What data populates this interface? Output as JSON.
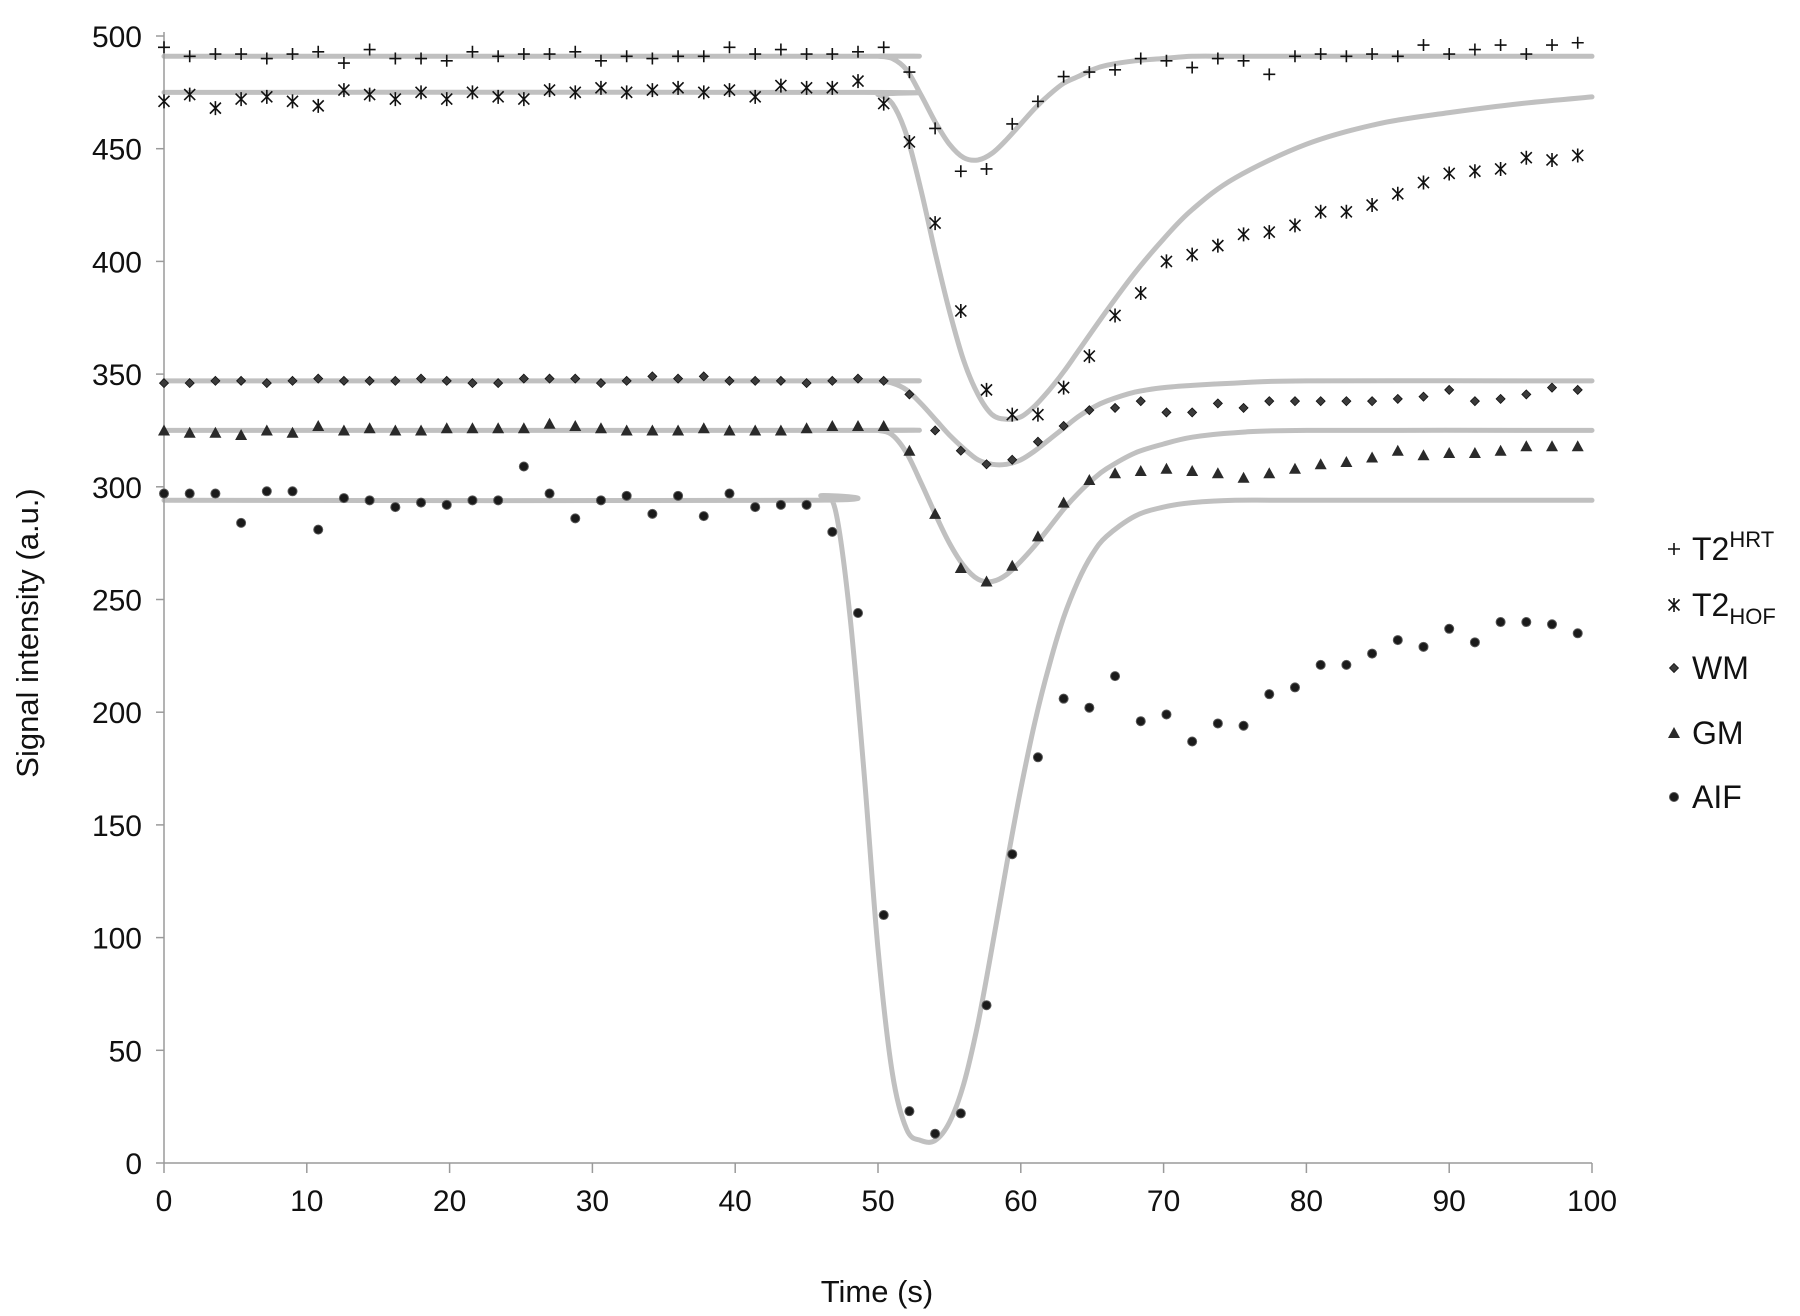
{
  "chart_data": {
    "type": "scatter",
    "title": "",
    "xlabel": "Time (s)",
    "ylabel": "Signal intensity (a.u.)",
    "xlim": [
      0,
      100
    ],
    "ylim": [
      0,
      500
    ],
    "x_ticks": [
      "0",
      "10",
      "20",
      "30",
      "40",
      "50",
      "60",
      "70",
      "80",
      "90",
      "100"
    ],
    "y_ticks": [
      "0",
      "50",
      "100",
      "150",
      "200",
      "250",
      "300",
      "350",
      "400",
      "450",
      "500"
    ],
    "grid": false,
    "legend_position": "right",
    "colors": {
      "markers": "#111111",
      "fit": "#c0c0c0",
      "axis": "#9a9a9a"
    },
    "series": [
      {
        "name": "T2",
        "name_sup": "HRT",
        "name_sub": "",
        "marker": "plus",
        "x": [
          0,
          1.8,
          3.6,
          5.4,
          7.2,
          9,
          10.8,
          12.6,
          14.4,
          16.2,
          18,
          19.8,
          21.6,
          23.4,
          25.2,
          27,
          28.8,
          30.6,
          32.4,
          34.2,
          36,
          37.8,
          39.6,
          41.4,
          43.2,
          45,
          46.8,
          48.6,
          50.4,
          52.2,
          54,
          55.8,
          57.6,
          59.4,
          61.2,
          63,
          64.8,
          66.6,
          68.4,
          70.2,
          72,
          73.8,
          75.6,
          77.4,
          79.2,
          81,
          82.8,
          84.6,
          86.4,
          88.2,
          90,
          91.8,
          93.6,
          95.4,
          97.2,
          99
        ],
        "y": [
          495,
          491,
          492,
          492,
          490,
          492,
          493,
          488,
          494,
          490,
          490,
          489,
          493,
          491,
          492,
          492,
          493,
          489,
          491,
          490,
          491,
          491,
          495,
          492,
          494,
          492,
          492,
          493,
          495,
          484,
          459,
          440,
          441,
          461,
          471,
          482,
          484,
          485,
          490,
          489,
          486,
          490,
          489,
          483,
          491,
          492,
          491,
          492,
          491,
          496,
          492,
          494,
          496,
          492,
          496,
          497
        ]
      },
      {
        "name": "T2",
        "name_sup": "",
        "name_sub": "HOF",
        "marker": "asterisk",
        "x": [
          0,
          1.8,
          3.6,
          5.4,
          7.2,
          9,
          10.8,
          12.6,
          14.4,
          16.2,
          18,
          19.8,
          21.6,
          23.4,
          25.2,
          27,
          28.8,
          30.6,
          32.4,
          34.2,
          36,
          37.8,
          39.6,
          41.4,
          43.2,
          45,
          46.8,
          48.6,
          50.4,
          52.2,
          54,
          55.8,
          57.6,
          59.4,
          61.2,
          63,
          64.8,
          66.6,
          68.4,
          70.2,
          72,
          73.8,
          75.6,
          77.4,
          79.2,
          81,
          82.8,
          84.6,
          86.4,
          88.2,
          90,
          91.8,
          93.6,
          95.4,
          97.2,
          99
        ],
        "y": [
          471,
          474,
          468,
          472,
          473,
          471,
          469,
          476,
          474,
          472,
          475,
          472,
          475,
          473,
          472,
          476,
          475,
          477,
          475,
          476,
          477,
          475,
          476,
          473,
          478,
          477,
          477,
          480,
          470,
          453,
          417,
          378,
          343,
          332,
          332,
          344,
          358,
          376,
          386,
          400,
          403,
          407,
          412,
          413,
          416,
          422,
          422,
          425,
          430,
          435,
          439,
          440,
          441,
          446,
          445,
          447
        ]
      },
      {
        "name": "WM",
        "name_sup": "",
        "name_sub": "",
        "marker": "diamond",
        "x": [
          0,
          1.8,
          3.6,
          5.4,
          7.2,
          9,
          10.8,
          12.6,
          14.4,
          16.2,
          18,
          19.8,
          21.6,
          23.4,
          25.2,
          27,
          28.8,
          30.6,
          32.4,
          34.2,
          36,
          37.8,
          39.6,
          41.4,
          43.2,
          45,
          46.8,
          48.6,
          50.4,
          52.2,
          54,
          55.8,
          57.6,
          59.4,
          61.2,
          63,
          64.8,
          66.6,
          68.4,
          70.2,
          72,
          73.8,
          75.6,
          77.4,
          79.2,
          81,
          82.8,
          84.6,
          86.4,
          88.2,
          90,
          91.8,
          93.6,
          95.4,
          97.2,
          99
        ],
        "y": [
          346,
          346,
          347,
          347,
          346,
          347,
          348,
          347,
          347,
          347,
          348,
          347,
          346,
          346,
          348,
          348,
          348,
          346,
          347,
          349,
          348,
          349,
          347,
          347,
          347,
          346,
          347,
          348,
          347,
          341,
          325,
          316,
          310,
          312,
          320,
          327,
          334,
          335,
          338,
          333,
          333,
          337,
          335,
          338,
          338,
          338,
          338,
          338,
          339,
          340,
          343,
          338,
          339,
          341,
          344,
          343
        ]
      },
      {
        "name": "GM",
        "name_sup": "",
        "name_sub": "",
        "marker": "triangle",
        "x": [
          0,
          1.8,
          3.6,
          5.4,
          7.2,
          9,
          10.8,
          12.6,
          14.4,
          16.2,
          18,
          19.8,
          21.6,
          23.4,
          25.2,
          27,
          28.8,
          30.6,
          32.4,
          34.2,
          36,
          37.8,
          39.6,
          41.4,
          43.2,
          45,
          46.8,
          48.6,
          50.4,
          52.2,
          54,
          55.8,
          57.6,
          59.4,
          61.2,
          63,
          64.8,
          66.6,
          68.4,
          70.2,
          72,
          73.8,
          75.6,
          77.4,
          79.2,
          81,
          82.8,
          84.6,
          86.4,
          88.2,
          90,
          91.8,
          93.6,
          95.4,
          97.2,
          99
        ],
        "y": [
          325,
          324,
          324,
          323,
          325,
          324,
          327,
          325,
          326,
          325,
          325,
          326,
          326,
          326,
          326,
          328,
          327,
          326,
          325,
          325,
          325,
          326,
          325,
          325,
          325,
          326,
          327,
          327,
          327,
          316,
          288,
          264,
          258,
          265,
          278,
          293,
          303,
          306,
          307,
          308,
          307,
          306,
          304,
          306,
          308,
          310,
          311,
          313,
          316,
          314,
          315,
          315,
          316,
          318,
          318,
          318
        ]
      },
      {
        "name": "AIF",
        "name_sup": "",
        "name_sub": "",
        "marker": "circle",
        "x": [
          0,
          1.8,
          3.6,
          5.4,
          7.2,
          9,
          10.8,
          12.6,
          14.4,
          16.2,
          18,
          19.8,
          21.6,
          23.4,
          25.2,
          27,
          28.8,
          30.6,
          32.4,
          34.2,
          36,
          37.8,
          39.6,
          41.4,
          43.2,
          45,
          46.8,
          48.6,
          50.4,
          52.2,
          54,
          55.8,
          57.6,
          59.4,
          61.2,
          63,
          64.8,
          66.6,
          68.4,
          70.2,
          72,
          73.8,
          75.6,
          77.4,
          79.2,
          81,
          82.8,
          84.6,
          86.4,
          88.2,
          90,
          91.8,
          93.6,
          95.4,
          97.2,
          99
        ],
        "y": [
          297,
          297,
          297,
          284,
          298,
          298,
          281,
          295,
          294,
          291,
          293,
          292,
          294,
          294,
          309,
          297,
          286,
          294,
          296,
          288,
          296,
          287,
          297,
          291,
          292,
          292,
          280,
          244,
          110,
          23,
          13,
          22,
          70,
          137,
          180,
          206,
          202,
          216,
          196,
          199,
          187,
          195,
          194,
          208,
          211,
          221,
          221,
          226,
          232,
          229,
          237,
          231,
          240,
          240,
          239,
          235
        ]
      }
    ],
    "fits": [
      {
        "series": "T2HRT",
        "x": [
          0,
          49,
          50,
          51,
          52,
          53,
          54,
          55,
          56,
          57,
          58,
          59,
          60,
          61,
          62,
          63,
          64,
          65,
          66,
          68,
          70,
          72,
          75,
          80,
          90,
          100
        ],
        "y": [
          491,
          491,
          491,
          490,
          485,
          474,
          462,
          452,
          446,
          445,
          448,
          454,
          461,
          468,
          474,
          479,
          482,
          485,
          487,
          489,
          490,
          491,
          491,
          491,
          491,
          491
        ]
      },
      {
        "series": "T2HOF",
        "x": [
          0,
          49,
          50,
          51,
          52,
          53,
          54,
          55,
          56,
          57,
          58,
          59,
          60,
          61,
          62,
          63,
          64,
          66,
          68,
          70,
          72,
          75,
          80,
          85,
          90,
          95,
          100
        ],
        "y": [
          475,
          475,
          474,
          470,
          456,
          432,
          404,
          378,
          356,
          341,
          332,
          330,
          331,
          336,
          343,
          351,
          360,
          378,
          395,
          410,
          423,
          437,
          452,
          461,
          466,
          470,
          473
        ]
      },
      {
        "series": "WM",
        "x": [
          0,
          49,
          50,
          51,
          52,
          53,
          54,
          55,
          56,
          57,
          58,
          59,
          60,
          61,
          62,
          63,
          64,
          65,
          66,
          68,
          70,
          72,
          75,
          80,
          100
        ],
        "y": [
          347,
          347,
          347,
          346,
          343,
          337,
          330,
          323,
          317,
          312,
          310,
          310,
          312,
          316,
          321,
          326,
          331,
          335,
          338,
          342,
          344,
          345,
          346,
          347,
          347
        ]
      },
      {
        "series": "GM",
        "x": [
          0,
          49,
          50,
          51,
          52,
          53,
          54,
          55,
          56,
          57,
          58,
          59,
          60,
          61,
          62,
          63,
          64,
          65,
          66,
          68,
          70,
          72,
          75,
          80,
          100
        ],
        "y": [
          325,
          325,
          325,
          323,
          315,
          302,
          288,
          275,
          265,
          259,
          258,
          261,
          267,
          274,
          282,
          290,
          297,
          303,
          308,
          315,
          319,
          322,
          324,
          325,
          325
        ]
      },
      {
        "series": "AIF",
        "x": [
          0,
          45,
          46,
          47,
          48,
          49,
          50,
          51,
          52,
          53,
          54,
          55,
          56,
          57,
          58,
          59,
          60,
          61,
          62,
          63,
          64,
          65,
          66,
          68,
          70,
          72,
          75,
          80,
          100
        ],
        "y": [
          294,
          294,
          296,
          290,
          245,
          175,
          95,
          40,
          15,
          10,
          10,
          18,
          35,
          62,
          96,
          132,
          166,
          196,
          221,
          242,
          258,
          270,
          278,
          287,
          291,
          293,
          294,
          294,
          294
        ]
      }
    ]
  }
}
